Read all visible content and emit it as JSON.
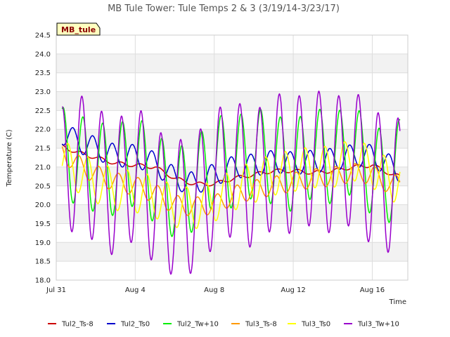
{
  "chart_data": {
    "type": "line",
    "title": "MB Tule Tower: Tule Temps 2 & 3 (3/19/14-3/23/17)",
    "badge": "MB_tule",
    "xlabel": "Time",
    "ylabel": "Temperature (C)",
    "ylim": [
      18.0,
      24.5
    ],
    "xlim": [
      0,
      17.8
    ],
    "y_ticks": [
      "18.0",
      "18.5",
      "19.0",
      "19.5",
      "20.0",
      "20.5",
      "21.0",
      "21.5",
      "22.0",
      "22.5",
      "23.0",
      "23.5",
      "24.0",
      "24.5"
    ],
    "x_ticks": [
      {
        "x": 0,
        "label": "Jul 31"
      },
      {
        "x": 4,
        "label": "Aug 4"
      },
      {
        "x": 8,
        "label": "Aug 8"
      },
      {
        "x": 12,
        "label": "Aug 12"
      },
      {
        "x": 16,
        "label": "Aug 16"
      }
    ],
    "grid": true,
    "legend_position": "bottom",
    "x_units": "days since Jul 31",
    "series": [
      {
        "name": "Tul2_Ts-8",
        "color": "#cc0000",
        "base": [
          [
            0.3,
            21.55
          ],
          [
            1,
            21.4
          ],
          [
            2,
            21.25
          ],
          [
            3,
            21.1
          ],
          [
            4,
            21.05
          ],
          [
            5,
            21.0
          ],
          [
            6,
            20.7
          ],
          [
            7,
            20.55
          ],
          [
            8,
            20.55
          ],
          [
            9,
            20.7
          ],
          [
            10,
            20.8
          ],
          [
            11,
            20.9
          ],
          [
            12,
            20.9
          ],
          [
            13,
            20.85
          ],
          [
            14,
            20.9
          ],
          [
            15,
            21.0
          ],
          [
            16,
            21.05
          ],
          [
            17,
            20.8
          ],
          [
            17.4,
            20.75
          ]
        ],
        "amp": 0.05,
        "phase": 0.0
      },
      {
        "name": "Tul2_Ts0",
        "color": "#0000cc",
        "base": [
          [
            0.3,
            21.9
          ],
          [
            1,
            21.7
          ],
          [
            2,
            21.5
          ],
          [
            3,
            21.3
          ],
          [
            4,
            21.3
          ],
          [
            5,
            21.1
          ],
          [
            6,
            20.7
          ],
          [
            7,
            20.55
          ],
          [
            8,
            20.8
          ],
          [
            9,
            21.0
          ],
          [
            10,
            21.05
          ],
          [
            11,
            21.15
          ],
          [
            12,
            21.1
          ],
          [
            13,
            21.15
          ],
          [
            14,
            21.2
          ],
          [
            15,
            21.3
          ],
          [
            16,
            21.3
          ],
          [
            17,
            21.0
          ],
          [
            17.4,
            20.9
          ]
        ],
        "amp": 0.3,
        "phase": 0.6
      },
      {
        "name": "Tul2_Tw+10",
        "color": "#00ee00",
        "base": [
          [
            0.3,
            21.4
          ],
          [
            1,
            21.2
          ],
          [
            2,
            21.0
          ],
          [
            3,
            20.9
          ],
          [
            4,
            21.2
          ],
          [
            5,
            20.7
          ],
          [
            6,
            20.3
          ],
          [
            7,
            20.5
          ],
          [
            8,
            21.2
          ],
          [
            9,
            21.1
          ],
          [
            10,
            21.4
          ],
          [
            11,
            21.2
          ],
          [
            12,
            21.0
          ],
          [
            13,
            21.4
          ],
          [
            14,
            21.2
          ],
          [
            15,
            21.5
          ],
          [
            16,
            20.9
          ],
          [
            17,
            20.7
          ],
          [
            17.4,
            21.1
          ]
        ],
        "amp": 1.2,
        "phase": 0.1
      },
      {
        "name": "Tul3_Ts-8",
        "color": "#ff9900",
        "base": [
          [
            0.3,
            21.4
          ],
          [
            1,
            21.1
          ],
          [
            2,
            20.8
          ],
          [
            3,
            20.6
          ],
          [
            4,
            20.5
          ],
          [
            5,
            20.3
          ],
          [
            6,
            20.0
          ],
          [
            7,
            19.95
          ],
          [
            8,
            20.0
          ],
          [
            9,
            20.25
          ],
          [
            10,
            20.4
          ],
          [
            11,
            20.5
          ],
          [
            12,
            20.6
          ],
          [
            13,
            20.7
          ],
          [
            14,
            20.75
          ],
          [
            15,
            20.85
          ],
          [
            16,
            20.8
          ],
          [
            17,
            20.5
          ],
          [
            17.4,
            20.6
          ]
        ],
        "amp": 0.25,
        "phase": 0.9
      },
      {
        "name": "Tul3_Ts0",
        "color": "#ffff00",
        "base": [
          [
            0.3,
            21.2
          ],
          [
            1,
            20.9
          ],
          [
            2,
            20.6
          ],
          [
            3,
            20.4
          ],
          [
            4,
            20.35
          ],
          [
            5,
            20.2
          ],
          [
            6,
            19.95
          ],
          [
            7,
            19.9
          ],
          [
            8,
            20.1
          ],
          [
            9,
            20.4
          ],
          [
            10,
            20.6
          ],
          [
            11,
            20.8
          ],
          [
            12,
            20.9
          ],
          [
            13,
            21.0
          ],
          [
            14,
            21.0
          ],
          [
            15,
            21.2
          ],
          [
            16,
            21.0
          ],
          [
            17,
            20.6
          ],
          [
            17.4,
            20.7
          ]
        ],
        "amp": 0.55,
        "phase": 0.35
      },
      {
        "name": "Tul3_Tw+10",
        "color": "#9900cc",
        "base": [
          [
            0.3,
            20.8
          ],
          [
            1,
            21.2
          ],
          [
            2,
            20.8
          ],
          [
            3,
            20.4
          ],
          [
            4,
            20.9
          ],
          [
            5,
            20.2
          ],
          [
            6,
            19.9
          ],
          [
            7,
            20.0
          ],
          [
            8,
            20.7
          ],
          [
            9,
            21.0
          ],
          [
            10,
            20.6
          ],
          [
            11,
            21.2
          ],
          [
            12,
            21.0
          ],
          [
            13,
            21.3
          ],
          [
            14,
            21.0
          ],
          [
            15,
            21.3
          ],
          [
            16,
            20.7
          ],
          [
            17,
            20.5
          ],
          [
            17.4,
            20.5
          ]
        ],
        "amp": 1.8,
        "phase": 0.05
      }
    ]
  }
}
